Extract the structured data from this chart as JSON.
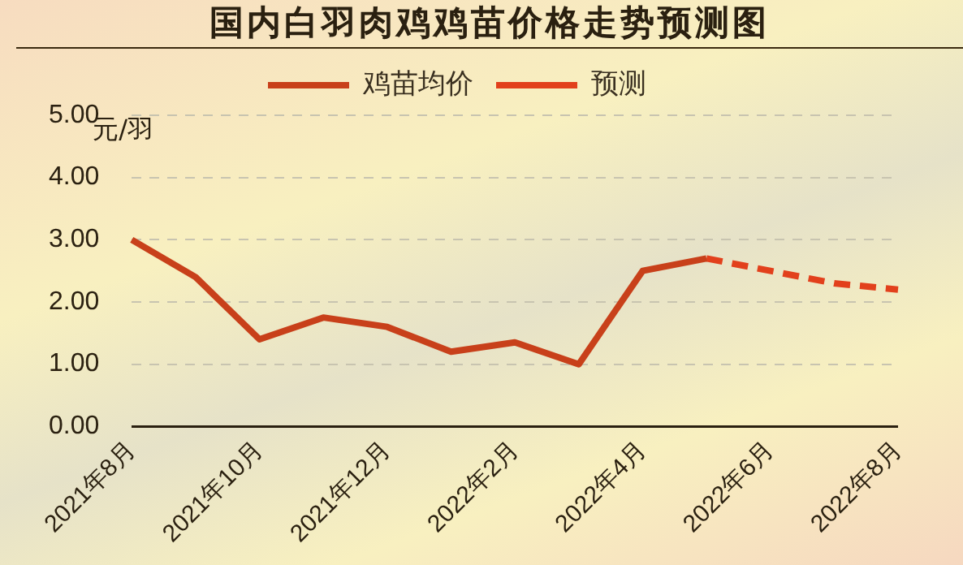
{
  "chart_data": {
    "type": "line",
    "title": "国内白羽肉鸡鸡苗价格走势预测图",
    "ylabel": "元/羽",
    "categories": [
      "2021年8月",
      null,
      "2021年10月",
      null,
      "2021年12月",
      null,
      "2022年2月",
      null,
      "2022年4月",
      null,
      "2022年6月",
      null,
      "2022年8月"
    ],
    "series": [
      {
        "name": "鸡苗均价",
        "color": "#c8401a",
        "line_style": "solid",
        "values": [
          3.0,
          2.4,
          1.4,
          1.75,
          1.6,
          1.2,
          1.35,
          1.0,
          2.5,
          2.7,
          null,
          null,
          null
        ]
      },
      {
        "name": "预测",
        "color": "#e2401c",
        "line_style": "dashed",
        "values": [
          null,
          null,
          null,
          null,
          null,
          null,
          null,
          null,
          null,
          2.7,
          2.5,
          2.3,
          2.2
        ]
      }
    ],
    "ylim": [
      0,
      5
    ],
    "yticks": [
      {
        "value": 0,
        "label": "0.00"
      },
      {
        "value": 1,
        "label": "1.00"
      },
      {
        "value": 2,
        "label": "2.00"
      },
      {
        "value": 3,
        "label": "3.00"
      },
      {
        "value": 4,
        "label": "4.00"
      },
      {
        "value": 5,
        "label": "5.00"
      }
    ],
    "grid": "y",
    "legend": "top",
    "marker": "none"
  }
}
